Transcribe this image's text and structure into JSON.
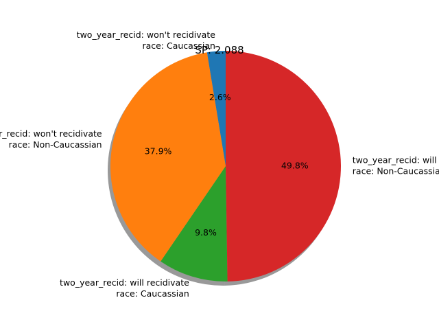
{
  "chart_data": {
    "type": "pie",
    "title": "SP: 2.088",
    "slices": [
      {
        "label_line1": "two_year_recid: won't recidivate",
        "label_line2": "race: Caucassian",
        "value": 2.6,
        "pct_label": "2.6%",
        "color": "#1f77b4"
      },
      {
        "label_line1": "two_year_recid: won't recidivate",
        "label_line2": "race: Non-Caucassian",
        "value": 37.9,
        "pct_label": "37.9%",
        "color": "#ff7f0e"
      },
      {
        "label_line1": "two_year_recid: will recidivate",
        "label_line2": "race: Caucassian",
        "value": 9.8,
        "pct_label": "9.8%",
        "color": "#2ca02c"
      },
      {
        "label_line1": "two_year_recid: will recidivate",
        "label_line2": "race: Non-Caucassian",
        "value": 49.8,
        "pct_label": "49.8%",
        "color": "#d62728"
      }
    ],
    "start_angle_deg": 90,
    "direction": "counterclockwise",
    "shadow": true
  }
}
